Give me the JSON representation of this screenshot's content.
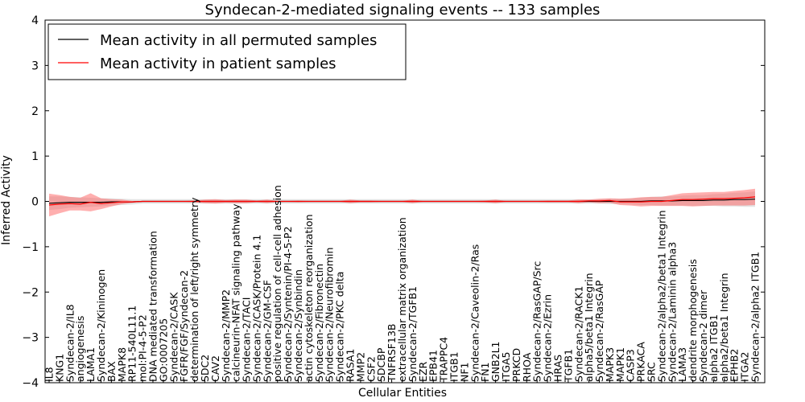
{
  "chart_data": {
    "type": "line",
    "title": "Syndecan-2-mediated signaling events -- 133 samples",
    "xlabel": "Cellular Entities",
    "ylabel": "Inferred Activity",
    "ylim": [
      -4,
      4
    ],
    "yticks": [
      -4,
      -3,
      -2,
      -1,
      0,
      1,
      2,
      3,
      4
    ],
    "legend_position": "top-left",
    "colors": {
      "permuted_line": "#000000",
      "permuted_band": "#c0c0c0",
      "patient_line": "#ff0000",
      "patient_band": "#ff6060"
    },
    "categories": [
      "IL8",
      "KNG1",
      "Syndecan-2/IL8",
      "angiogenesis",
      "LAMA1",
      "Syndecan-2/Kininogen",
      "BAX",
      "MAPK8",
      "RP11-540L11.1",
      "mol:PI-4-5-P2",
      "DNA mediated transformation",
      "GO:0007205",
      "Syndecan-2/CASK",
      "FGFR/FGF/Syndecan-2",
      "determination of left/right symmetry",
      "SDC2",
      "CAV2",
      "Syndecan-2/MMP2",
      "calcineurin-NFAT signaling pathway",
      "Syndecan-2/TACI",
      "Syndecan-2/CASK/Protein 4.1",
      "Syndecan-2/GM-CSF",
      "positive regulation of cell-cell adhesion",
      "Syndecan-2/Syntenin/PI-4-5-P2",
      "Syndecan-2/Synbindin",
      "actin cytoskeleton reorganization",
      "Syndecan-2/Fibronectin",
      "Syndecan-2/Neurofibromin",
      "Syndecan-2/PKC delta",
      "RASA1",
      "MMP2",
      "CSF2",
      "SDCBP",
      "TNFRSF13B",
      "extracellular matrix organization",
      "Syndecan-2/TGFB1",
      "EZR",
      "EPB41",
      "TRAPPC4",
      "ITGB1",
      "NF1",
      "Syndecan-2/Caveolin-2/Ras",
      "FN1",
      "GNB2L1",
      "ITGA5",
      "PRKCD",
      "RHOA",
      "Syndecan-2/RasGAP/Src",
      "Syndecan-2/Ezrin",
      "HRAS",
      "TGFB1",
      "Syndecan-2/RACK1",
      "alpha5/beta1 Integrin",
      "Syndecan-2/RasGAP",
      "MAPK3",
      "MAPK1",
      "CASP3",
      "PRKACA",
      "SRC",
      "Syndecan-2/alpha2/beta1 Integrin",
      "Syndecan-2/Laminin alpha3",
      "LAMA3",
      "dendrite morphogenesis",
      "Syndecan-2 dimer",
      "alpha2 ITGB1",
      "alpha2/beta1 Integrin",
      "EPHB2",
      "ITGA2",
      "Syndecan-2/alpha2 ITGB1"
    ],
    "series": [
      {
        "name": "Mean activity in all permuted samples",
        "values": [
          -0.04,
          -0.03,
          -0.02,
          -0.02,
          -0.02,
          -0.02,
          -0.01,
          -0.01,
          -0.01,
          0,
          0,
          0,
          0,
          0,
          0,
          0,
          0,
          0,
          0,
          0,
          0,
          0,
          0,
          0,
          0,
          0,
          0,
          0,
          0,
          0,
          0,
          0,
          0,
          0,
          0,
          0,
          0,
          0,
          0,
          0,
          0,
          0,
          0,
          0,
          0,
          0,
          0,
          0,
          0,
          0,
          0,
          0,
          0,
          0,
          0,
          0,
          0,
          0,
          0.01,
          0.01,
          0.01,
          0.02,
          0.02,
          0.02,
          0.03,
          0.03,
          0.04,
          0.04,
          0.05
        ],
        "band": [
          0.15,
          0.14,
          0.12,
          0.11,
          0.1,
          0.09,
          0.08,
          0.07,
          0.06,
          0.05,
          0.05,
          0.05,
          0.05,
          0.05,
          0.05,
          0.05,
          0.05,
          0.05,
          0.05,
          0.05,
          0.05,
          0.05,
          0.05,
          0.05,
          0.05,
          0.05,
          0.05,
          0.05,
          0.05,
          0.05,
          0.05,
          0.05,
          0.05,
          0.05,
          0.05,
          0.05,
          0.05,
          0.05,
          0.05,
          0.05,
          0.05,
          0.05,
          0.05,
          0.05,
          0.05,
          0.05,
          0.05,
          0.05,
          0.05,
          0.05,
          0.05,
          0.05,
          0.05,
          0.05,
          0.06,
          0.06,
          0.07,
          0.08,
          0.09,
          0.1,
          0.1,
          0.11,
          0.12,
          0.12,
          0.13,
          0.14,
          0.15,
          0.16,
          0.17
        ]
      },
      {
        "name": "Mean activity in patient samples",
        "values": [
          -0.08,
          -0.06,
          -0.05,
          -0.06,
          -0.02,
          -0.05,
          -0.03,
          -0.01,
          -0.01,
          0,
          0,
          0,
          0,
          0,
          0,
          0,
          0,
          0,
          0,
          0,
          0,
          0,
          0,
          0,
          0,
          0,
          0,
          0,
          0,
          0,
          0,
          0,
          0,
          0,
          0,
          0,
          0,
          0,
          0,
          0,
          0,
          0,
          0,
          0,
          0,
          0,
          0,
          0,
          0,
          0,
          0,
          0,
          0.01,
          0.01,
          0.02,
          -0.01,
          -0.01,
          -0.01,
          0,
          0,
          0.02,
          0.04,
          0.04,
          0.05,
          0.06,
          0.06,
          0.07,
          0.08,
          0.1
        ],
        "band": [
          0.25,
          0.2,
          0.15,
          0.14,
          0.2,
          0.12,
          0.08,
          0.05,
          0.02,
          0.01,
          0.01,
          0.01,
          0.01,
          0.01,
          0.02,
          0.04,
          0.05,
          0.03,
          0.04,
          0.04,
          0.02,
          0.04,
          0.01,
          0.01,
          0.02,
          0.01,
          0.01,
          0.01,
          0.01,
          0.04,
          0.02,
          0.02,
          0.01,
          0.01,
          0.01,
          0.04,
          0.01,
          0.01,
          0.01,
          0.01,
          0.01,
          0.01,
          0.02,
          0.04,
          0.01,
          0.01,
          0.01,
          0.01,
          0.02,
          0.02,
          0.02,
          0.04,
          0.03,
          0.05,
          0.05,
          0.07,
          0.08,
          0.1,
          0.1,
          0.1,
          0.12,
          0.14,
          0.15,
          0.15,
          0.15,
          0.15,
          0.16,
          0.17,
          0.18
        ]
      }
    ]
  }
}
